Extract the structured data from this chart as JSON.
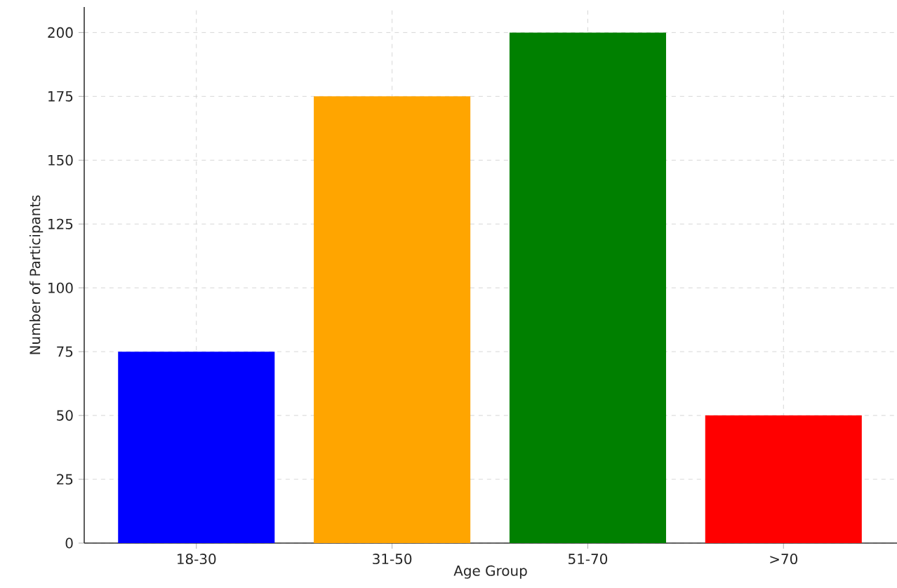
{
  "chart_data": {
    "type": "bar",
    "xlabel": "Age Group",
    "ylabel": "Number of Participants",
    "categories": [
      "18-30",
      "31-50",
      "51-70",
      ">70"
    ],
    "values": [
      75,
      175,
      200,
      50
    ],
    "colors": [
      "#0000ff",
      "#ffa500",
      "#008000",
      "#ff0000"
    ],
    "ylim": [
      0,
      210
    ],
    "yticks": [
      0,
      25,
      50,
      75,
      100,
      125,
      150,
      175,
      200
    ],
    "grid": true
  }
}
